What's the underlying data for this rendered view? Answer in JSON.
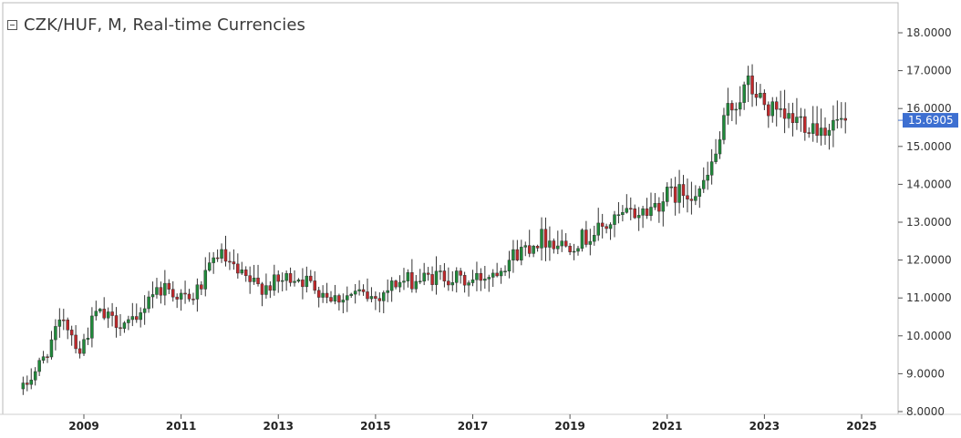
{
  "chart_title": "CZK/HUF, M, Real-time Currencies",
  "colors": {
    "up": "#1f8a3a",
    "down": "#c0282b",
    "wick": "#333333",
    "price_tag_bg": "#3d6fd1",
    "frame": "#b8b8b8"
  },
  "chart_data": {
    "type": "candlestick",
    "title": "CZK/HUF, M, Real-time Currencies",
    "ylim": [
      8.0,
      18.4
    ],
    "y_ticks": [
      "18.0000",
      "17.0000",
      "16.0000",
      "15.0000",
      "14.0000",
      "13.0000",
      "12.0000",
      "11.0000",
      "10.0000",
      "9.0000",
      "8.0000"
    ],
    "x_ticks": [
      "2009",
      "2011",
      "2013",
      "2015",
      "2017",
      "2019",
      "2021",
      "2023",
      "2025"
    ],
    "x_range": [
      "2007-10",
      "2025-10"
    ],
    "last_price": "15.6905",
    "anchors": [
      [
        "2007-10",
        8.6
      ],
      [
        "2008-03",
        9.4
      ],
      [
        "2008-08",
        10.5
      ],
      [
        "2008-12",
        9.6
      ],
      [
        "2009-04",
        10.6
      ],
      [
        "2009-08",
        10.4
      ],
      [
        "2010-02",
        10.3
      ],
      [
        "2010-05",
        11.1
      ],
      [
        "2010-09",
        11.3
      ],
      [
        "2010-12",
        11.1
      ],
      [
        "2011-03",
        10.9
      ],
      [
        "2011-07",
        11.5
      ],
      [
        "2011-10",
        12.2
      ],
      [
        "2012-03",
        11.6
      ],
      [
        "2012-08",
        11.3
      ],
      [
        "2013-01",
        11.4
      ],
      [
        "2013-05",
        11.6
      ],
      [
        "2013-10",
        11.3
      ],
      [
        "2014-03",
        11.0
      ],
      [
        "2014-08",
        11.1
      ],
      [
        "2015-01",
        11.0
      ],
      [
        "2015-06",
        11.4
      ],
      [
        "2016-01",
        11.5
      ],
      [
        "2016-06",
        11.6
      ],
      [
        "2016-12",
        11.4
      ],
      [
        "2017-06",
        11.7
      ],
      [
        "2017-12",
        12.2
      ],
      [
        "2018-06",
        12.6
      ],
      [
        "2018-12",
        12.4
      ],
      [
        "2019-05",
        12.6
      ],
      [
        "2019-10",
        12.9
      ],
      [
        "2020-03",
        13.2
      ],
      [
        "2020-08",
        13.3
      ],
      [
        "2021-01",
        13.7
      ],
      [
        "2021-06",
        13.8
      ],
      [
        "2021-10",
        13.9
      ],
      [
        "2022-01",
        14.8
      ],
      [
        "2022-04",
        15.9
      ],
      [
        "2022-09",
        16.6
      ],
      [
        "2023-01",
        16.1
      ],
      [
        "2023-05",
        15.7
      ],
      [
        "2023-10",
        15.7
      ],
      [
        "2024-03",
        15.5
      ],
      [
        "2024-09",
        15.69
      ]
    ]
  }
}
